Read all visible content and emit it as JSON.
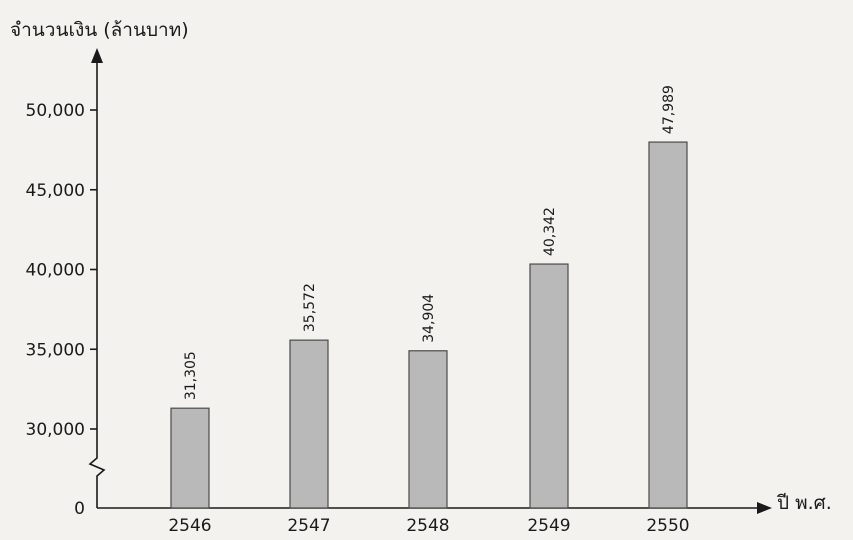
{
  "chart_data": {
    "type": "bar",
    "categories": [
      "2546",
      "2547",
      "2548",
      "2549",
      "2550"
    ],
    "values": [
      31305,
      35572,
      34904,
      40342,
      47989
    ],
    "data_labels": [
      "31,305",
      "35,572",
      "34,904",
      "40,342",
      "47,989"
    ],
    "title": "",
    "ylabel": "จำนวนเงิน (ล้านบาท)",
    "xlabel": "ปี พ.ศ.",
    "yticks": [
      0,
      30000,
      35000,
      40000,
      45000,
      50000
    ],
    "ytick_labels": [
      "0",
      "30,000",
      "35,000",
      "40,000",
      "45,000",
      "50,000"
    ],
    "ylim": [
      27500,
      50000
    ],
    "axis_break": true,
    "grid": false,
    "legend": "none",
    "bar_color": "#b9b9b9",
    "bar_edge_color": "#4a4a4a",
    "axis_color": "#1a1a1a"
  }
}
